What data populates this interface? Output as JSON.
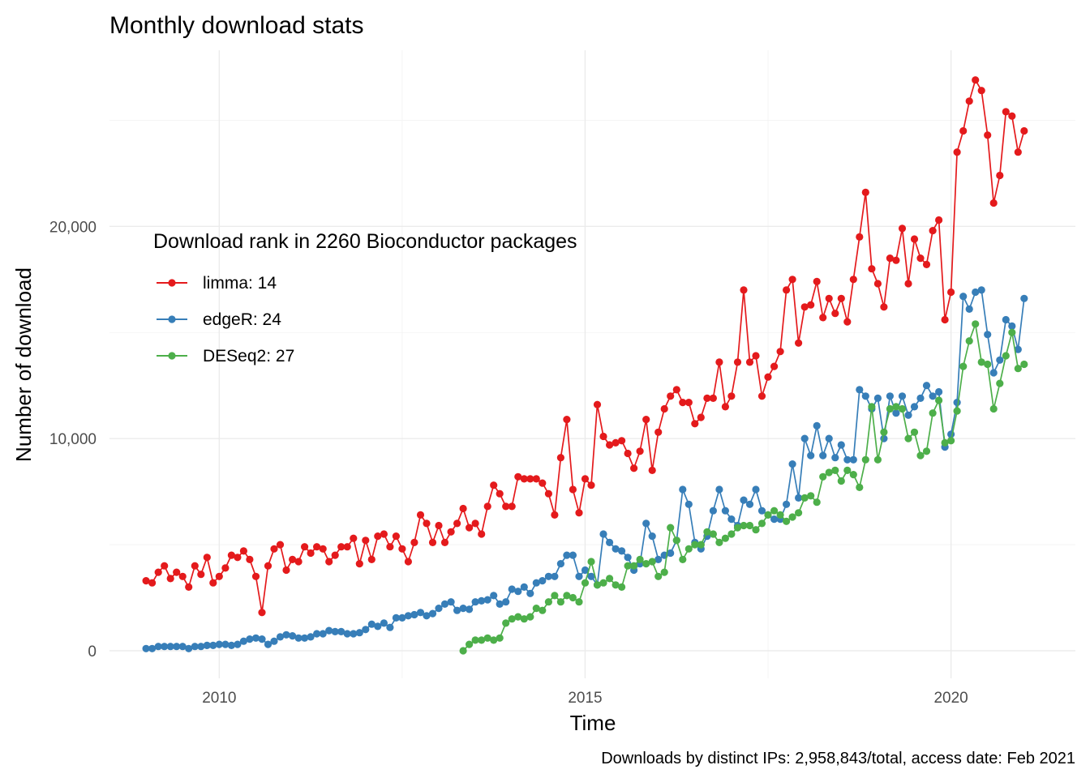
{
  "chart_data": {
    "type": "line",
    "title": "Monthly download stats",
    "xlabel": "Time",
    "ylabel": "Number of download",
    "caption": "Downloads by distinct IPs: 2,958,843/total, access date: Feb 2021",
    "legend_title": "Download rank in 2260 Bioconductor packages",
    "legend_position": "top-left (inside plot)",
    "grid": true,
    "xlim": [
      2008.5,
      2021.7
    ],
    "ylim": [
      -1300,
      28300
    ],
    "x_ticks": [
      2010,
      2015,
      2020
    ],
    "x_tick_labels": [
      "2010",
      "2015",
      "2020"
    ],
    "y_ticks": [
      0,
      10000,
      20000
    ],
    "y_tick_labels": [
      "0",
      "10,000",
      "20,000"
    ],
    "series": [
      {
        "name": "limma: 14",
        "color": "#E41A1C",
        "start": "2009-01",
        "values": [
          3300,
          3200,
          3700,
          4000,
          3400,
          3700,
          3500,
          3000,
          4000,
          3600,
          4400,
          3200,
          3500,
          3900,
          4500,
          4400,
          4700,
          4300,
          3500,
          1800,
          4000,
          4800,
          5000,
          3800,
          4300,
          4200,
          4900,
          4600,
          4900,
          4800,
          4200,
          4500,
          4900,
          4900,
          5300,
          4100,
          5200,
          4300,
          5400,
          5500,
          4900,
          5400,
          4800,
          4200,
          5100,
          6400,
          6000,
          5100,
          5900,
          5100,
          5600,
          6000,
          6700,
          5800,
          6000,
          5500,
          6800,
          7800,
          7400,
          6800,
          6800,
          8200,
          8100,
          8100,
          8100,
          7900,
          7400,
          6400,
          9100,
          10900,
          7600,
          6500,
          8100,
          7800,
          11600,
          10100,
          9700,
          9800,
          9900,
          9300,
          8600,
          9400,
          10900,
          8500,
          10300,
          11400,
          12000,
          12300,
          11700,
          11700,
          10700,
          11000,
          11900,
          11900,
          13600,
          11500,
          12000,
          13600,
          17000,
          13600,
          13900,
          12000,
          12900,
          13400,
          14100,
          17000,
          17500,
          14500,
          16200,
          16300,
          17400,
          15700,
          16600,
          15900,
          16600,
          15500,
          17500,
          19500,
          21600,
          18000,
          17300,
          16200,
          18500,
          18400,
          19900,
          17300,
          19400,
          18500,
          18200,
          19800,
          20300,
          15600,
          16900,
          23500,
          24500,
          25900,
          26900,
          26400,
          24300,
          21100,
          22400,
          25400,
          25200,
          23500,
          24500
        ]
      },
      {
        "name": "edgeR: 24",
        "color": "#377EB8",
        "start": "2009-01",
        "values": [
          100,
          100,
          200,
          200,
          200,
          200,
          200,
          100,
          200,
          200,
          250,
          250,
          300,
          300,
          250,
          300,
          450,
          550,
          600,
          550,
          300,
          450,
          650,
          750,
          700,
          600,
          600,
          650,
          800,
          800,
          950,
          900,
          900,
          800,
          800,
          850,
          1000,
          1250,
          1150,
          1300,
          1100,
          1550,
          1550,
          1650,
          1700,
          1800,
          1650,
          1750,
          2000,
          2200,
          2300,
          1900,
          2000,
          1950,
          2300,
          2350,
          2400,
          2600,
          2200,
          2300,
          2900,
          2800,
          3000,
          2700,
          3200,
          3300,
          3500,
          3500,
          4100,
          4500,
          4500,
          3500,
          3800,
          3500,
          3100,
          5500,
          5100,
          4800,
          4700,
          4400,
          3800,
          4100,
          6000,
          5400,
          4300,
          4500,
          4600,
          5200,
          7600,
          6900,
          5100,
          4800,
          5400,
          6600,
          7600,
          6600,
          6200,
          5900,
          7100,
          6900,
          7600,
          6600,
          6400,
          6200,
          6200,
          6900,
          8800,
          7200,
          10000,
          9200,
          10600,
          9200,
          10000,
          9100,
          9700,
          9000,
          9000,
          12300,
          12000,
          11400,
          11900,
          10000,
          12000,
          11200,
          12000,
          11100,
          11500,
          11900,
          12500,
          12000,
          12200,
          9600,
          10200,
          11700,
          16700,
          16100,
          16900,
          17000,
          14900,
          13100,
          13700,
          15600,
          15300,
          14200,
          16600
        ]
      },
      {
        "name": "DESeq2: 27",
        "color": "#4DAF4A",
        "start": "2013-05",
        "values": [
          0,
          300,
          500,
          500,
          600,
          500,
          600,
          1300,
          1500,
          1600,
          1500,
          1600,
          2000,
          1900,
          2300,
          2600,
          2300,
          2600,
          2500,
          2300,
          3200,
          4200,
          3100,
          3200,
          3400,
          3100,
          3000,
          4000,
          4000,
          4300,
          4100,
          4200,
          3500,
          3700,
          5800,
          5200,
          4300,
          4800,
          5000,
          5000,
          5600,
          5500,
          5100,
          5300,
          5500,
          5800,
          5900,
          5900,
          5700,
          6000,
          6400,
          6600,
          6400,
          6100,
          6300,
          6500,
          7200,
          7300,
          7000,
          8200,
          8400,
          8500,
          8000,
          8500,
          8300,
          7700,
          9000,
          11500,
          9000,
          10300,
          11400,
          11500,
          11400,
          10000,
          10300,
          9200,
          9400,
          11200,
          11800,
          9800,
          9900,
          11300,
          13400,
          14600,
          15400,
          13600,
          13500,
          11400,
          12600,
          13900,
          15000,
          13300,
          13500
        ]
      }
    ]
  }
}
